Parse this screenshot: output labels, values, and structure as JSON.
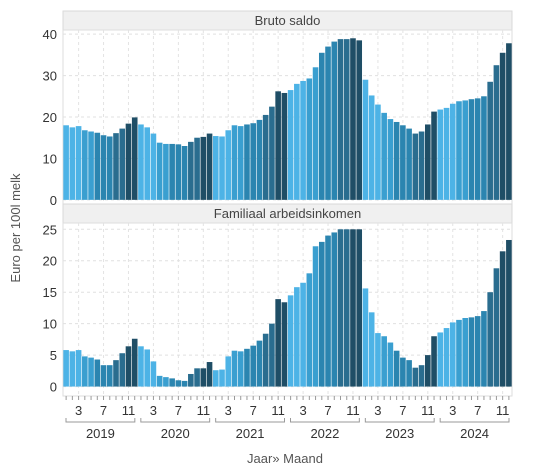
{
  "chart_data": {
    "type": "bar",
    "xlabel": "Jaar» Maand",
    "ylabel": "Euro per 100l melk",
    "month_tick_labels": [
      "3",
      "7",
      "11"
    ],
    "years": [
      "2019",
      "2020",
      "2021",
      "2022",
      "2023",
      "2024"
    ],
    "colors": [
      "#4db3e6",
      "#3a9fd0",
      "#2b85b0",
      "#2a6d8f",
      "#1f4e66"
    ],
    "panels": [
      {
        "title": "Bruto saldo",
        "ylim": [
          -1,
          41
        ],
        "yticks": [
          0,
          10,
          20,
          30,
          40
        ],
        "values": [
          18.0,
          17.5,
          17.8,
          16.8,
          16.5,
          16.2,
          15.6,
          15.3,
          16.1,
          17.2,
          18.4,
          19.9,
          18.2,
          17.5,
          16.0,
          13.8,
          13.5,
          13.5,
          13.4,
          13.0,
          14.0,
          15.0,
          15.2,
          16.0,
          15.4,
          15.3,
          16.8,
          18.0,
          17.8,
          18.2,
          18.5,
          19.3,
          20.5,
          22.5,
          26.2,
          25.8,
          26.5,
          28.0,
          28.7,
          29.3,
          32.0,
          35.5,
          37.0,
          38.2,
          38.8,
          38.8,
          39.0,
          38.5,
          29.0,
          25.2,
          23.0,
          21.0,
          19.5,
          18.8,
          18.0,
          17.2,
          16.0,
          16.5,
          18.2,
          21.3,
          21.8,
          22.2,
          23.2,
          23.8,
          24.0,
          24.3,
          24.5,
          25.0,
          28.5,
          32.5,
          35.5,
          37.8
        ]
      },
      {
        "title": "Familiaal arbeidsinkomen",
        "ylim": [
          -1.5,
          26
        ],
        "yticks": [
          0,
          5,
          10,
          15,
          20,
          25
        ],
        "values": [
          5.8,
          5.6,
          5.8,
          4.8,
          4.6,
          4.3,
          3.4,
          3.4,
          4.2,
          5.3,
          6.4,
          7.6,
          6.4,
          5.9,
          4.0,
          1.7,
          1.5,
          1.3,
          1.0,
          0.9,
          2.0,
          2.9,
          2.9,
          3.9,
          2.6,
          2.7,
          4.8,
          5.7,
          5.6,
          6.0,
          6.5,
          7.3,
          8.4,
          10.0,
          13.9,
          13.4,
          14.5,
          15.8,
          16.5,
          18.0,
          22.3,
          23.0,
          24.0,
          24.5,
          25.0,
          25.0,
          25.0,
          25.0,
          15.6,
          11.8,
          8.5,
          8.0,
          7.0,
          5.7,
          4.6,
          4.2,
          3.0,
          3.4,
          5.0,
          8.0,
          8.6,
          9.3,
          10.2,
          10.6,
          10.9,
          11.0,
          11.2,
          12.0,
          15.0,
          18.8,
          21.5,
          23.3
        ]
      }
    ]
  }
}
